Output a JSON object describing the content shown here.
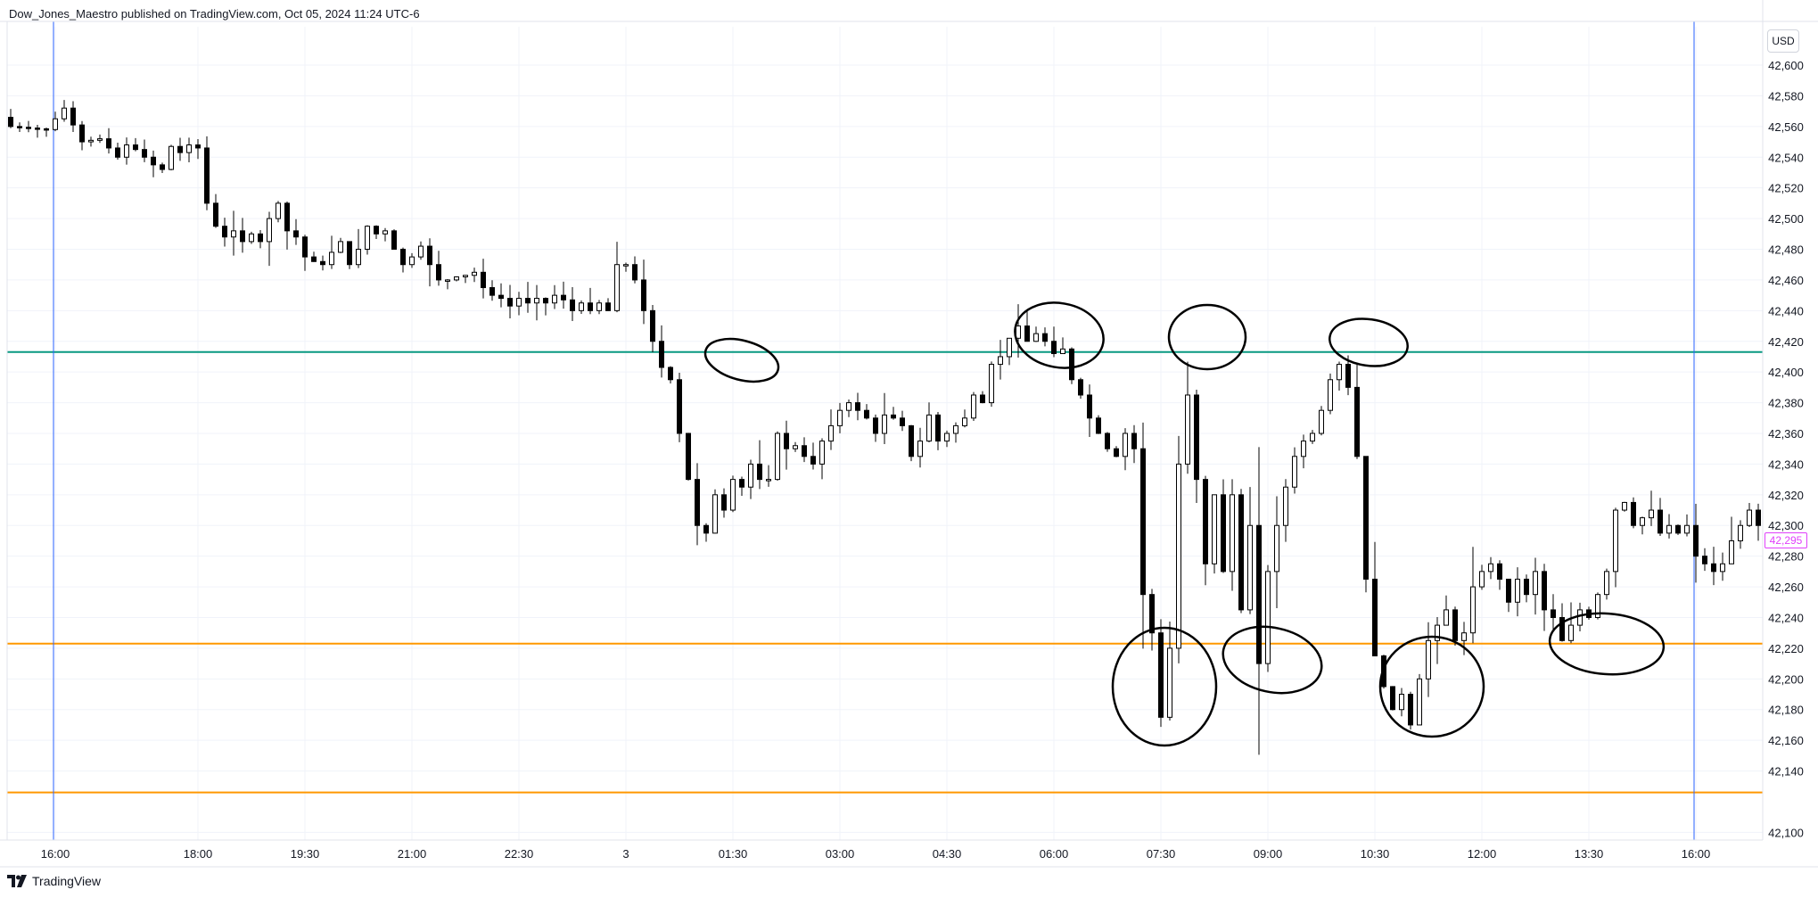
{
  "header": {
    "publisher_text": "Dow_Jones_Maestro published on TradingView.com, Oct 05, 2024 11:24 UTC-6"
  },
  "footer": {
    "brand": "TradingView"
  },
  "currency": "USD",
  "current_price_label": "42,295",
  "chart_data": {
    "type": "candlestick",
    "x_tick_labels": [
      "16:00",
      "18:00",
      "19:30",
      "21:00",
      "22:30",
      "3",
      "01:30",
      "03:00",
      "04:30",
      "06:00",
      "07:30",
      "09:00",
      "10:30",
      "12:00",
      "13:30",
      "16:00"
    ],
    "y_tick_labels": [
      "42,600",
      "42,580",
      "42,560",
      "42,540",
      "42,520",
      "42,500",
      "42,480",
      "42,460",
      "42,440",
      "42,420",
      "42,400",
      "42,380",
      "42,360",
      "42,340",
      "42,320",
      "42,300",
      "42,280",
      "42,260",
      "42,240",
      "42,220",
      "42,200",
      "42,180",
      "42,160",
      "42,140",
      "42,100"
    ],
    "ylim": [
      42095,
      42625
    ],
    "horizontal_lines": [
      {
        "name": "resistance",
        "price": 42413,
        "color": "#089981"
      },
      {
        "name": "support-upper",
        "price": 42223,
        "color": "#ff9800"
      },
      {
        "name": "support-lower",
        "price": 42126,
        "color": "#ff9800"
      }
    ],
    "vertical_lines": [
      {
        "name": "session-start",
        "x_label": "16:00",
        "color": "#2962ff"
      },
      {
        "name": "session-end",
        "x_label": "16:00",
        "color": "#2962ff"
      }
    ],
    "last_price": 42295,
    "colors": {
      "candle_outline": "#000000",
      "up_fill": "#ffffff",
      "down_fill": "#000000",
      "grid": "#f0f3fa"
    },
    "candle_path": [
      [
        0,
        42560
      ],
      [
        4,
        42558
      ],
      [
        6,
        42572
      ],
      [
        8,
        42550
      ],
      [
        10,
        42552
      ],
      [
        12,
        42540
      ],
      [
        13,
        42548
      ],
      [
        14,
        42545
      ],
      [
        15,
        42540
      ],
      [
        16,
        42535
      ],
      [
        17,
        42532
      ],
      [
        18,
        42547
      ],
      [
        19,
        42543
      ],
      [
        20,
        42548
      ],
      [
        21,
        42546
      ],
      [
        22,
        42510
      ],
      [
        23,
        42495
      ],
      [
        24,
        42488
      ],
      [
        25,
        42492
      ],
      [
        26,
        42485
      ],
      [
        27,
        42490
      ],
      [
        28,
        42485
      ],
      [
        29,
        42500
      ],
      [
        30,
        42510
      ],
      [
        31,
        42492
      ],
      [
        32,
        42488
      ],
      [
        33,
        42475
      ],
      [
        34,
        42472
      ],
      [
        35,
        42470
      ],
      [
        36,
        42478
      ],
      [
        37,
        42485
      ],
      [
        38,
        42470
      ],
      [
        39,
        42480
      ],
      [
        40,
        42495
      ],
      [
        41,
        42490
      ],
      [
        42,
        42492
      ],
      [
        43,
        42480
      ],
      [
        44,
        42470
      ],
      [
        45,
        42475
      ],
      [
        46,
        42482
      ],
      [
        47,
        42470
      ],
      [
        48,
        42460
      ],
      [
        49,
        42460
      ],
      [
        50,
        42462
      ],
      [
        51,
        42463
      ],
      [
        52,
        42465
      ],
      [
        53,
        42455
      ],
      [
        54,
        42450
      ],
      [
        55,
        42448
      ],
      [
        56,
        42443
      ],
      [
        57,
        42448
      ],
      [
        58,
        42445
      ],
      [
        59,
        42448
      ],
      [
        60,
        42445
      ],
      [
        61,
        42450
      ],
      [
        62,
        42447
      ],
      [
        63,
        42440
      ],
      [
        64,
        42445
      ],
      [
        65,
        42440
      ],
      [
        66,
        42445
      ],
      [
        67,
        42440
      ],
      [
        68,
        42470
      ],
      [
        69,
        42470
      ],
      [
        70,
        42460
      ],
      [
        71,
        42440
      ],
      [
        72,
        42420
      ],
      [
        73,
        42403
      ],
      [
        74,
        42395
      ],
      [
        75,
        42360
      ],
      [
        76,
        42330
      ],
      [
        77,
        42300
      ],
      [
        78,
        42295
      ],
      [
        79,
        42320
      ],
      [
        80,
        42310
      ],
      [
        81,
        42330
      ],
      [
        82,
        42325
      ],
      [
        83,
        42340
      ],
      [
        84,
        42330
      ],
      [
        85,
        42330
      ],
      [
        86,
        42360
      ],
      [
        87,
        42350
      ],
      [
        88,
        42352
      ],
      [
        89,
        42345
      ],
      [
        90,
        42340
      ],
      [
        91,
        42355
      ],
      [
        92,
        42365
      ],
      [
        93,
        42375
      ],
      [
        94,
        42380
      ],
      [
        95,
        42375
      ],
      [
        96,
        42370
      ],
      [
        97,
        42360
      ],
      [
        98,
        42372
      ],
      [
        99,
        42370
      ],
      [
        100,
        42365
      ],
      [
        101,
        42345
      ],
      [
        102,
        42355
      ],
      [
        103,
        42372
      ],
      [
        104,
        42355
      ],
      [
        105,
        42360
      ],
      [
        106,
        42365
      ],
      [
        107,
        42370
      ],
      [
        108,
        42385
      ],
      [
        109,
        42380
      ],
      [
        110,
        42405
      ],
      [
        111,
        42410
      ],
      [
        112,
        42422
      ],
      [
        113,
        42430
      ],
      [
        114,
        42420
      ],
      [
        115,
        42425
      ],
      [
        116,
        42420
      ],
      [
        117,
        42412
      ],
      [
        118,
        42415
      ],
      [
        119,
        42395
      ],
      [
        120,
        42385
      ],
      [
        121,
        42370
      ],
      [
        122,
        42360
      ],
      [
        123,
        42350
      ],
      [
        124,
        42345
      ],
      [
        125,
        42360
      ],
      [
        126,
        42350
      ],
      [
        127,
        42255
      ],
      [
        128,
        42230
      ],
      [
        129,
        42175
      ],
      [
        130,
        42220
      ],
      [
        131,
        42340
      ],
      [
        132,
        42385
      ],
      [
        133,
        42330
      ],
      [
        134,
        42275
      ],
      [
        135,
        42320
      ],
      [
        136,
        42270
      ],
      [
        137,
        42320
      ],
      [
        138,
        42245
      ],
      [
        139,
        42300
      ],
      [
        140,
        42210
      ],
      [
        141,
        42270
      ],
      [
        142,
        42300
      ],
      [
        143,
        42325
      ],
      [
        144,
        42345
      ],
      [
        145,
        42355
      ],
      [
        146,
        42360
      ],
      [
        147,
        42375
      ],
      [
        148,
        42395
      ],
      [
        149,
        42405
      ],
      [
        150,
        42390
      ],
      [
        151,
        42345
      ],
      [
        152,
        42265
      ],
      [
        153,
        42215
      ],
      [
        154,
        42195
      ],
      [
        155,
        42180
      ],
      [
        156,
        42190
      ],
      [
        157,
        42170
      ],
      [
        158,
        42200
      ],
      [
        159,
        42225
      ],
      [
        160,
        42235
      ],
      [
        161,
        42245
      ],
      [
        162,
        42225
      ],
      [
        163,
        42230
      ],
      [
        164,
        42260
      ],
      [
        165,
        42270
      ],
      [
        166,
        42275
      ],
      [
        167,
        42265
      ],
      [
        168,
        42250
      ],
      [
        169,
        42265
      ],
      [
        170,
        42255
      ],
      [
        171,
        42270
      ],
      [
        172,
        42245
      ],
      [
        173,
        42240
      ],
      [
        174,
        42225
      ],
      [
        175,
        42235
      ],
      [
        176,
        42245
      ],
      [
        177,
        42240
      ],
      [
        178,
        42255
      ],
      [
        179,
        42270
      ],
      [
        180,
        42310
      ],
      [
        181,
        42315
      ],
      [
        182,
        42300
      ],
      [
        183,
        42305
      ],
      [
        184,
        42310
      ],
      [
        185,
        42295
      ],
      [
        186,
        42300
      ],
      [
        187,
        42295
      ],
      [
        188,
        42300
      ],
      [
        189,
        42280
      ],
      [
        190,
        42275
      ],
      [
        191,
        42270
      ],
      [
        192,
        42275
      ],
      [
        193,
        42290
      ],
      [
        194,
        42300
      ],
      [
        195,
        42310
      ],
      [
        196,
        42300
      ]
    ]
  }
}
